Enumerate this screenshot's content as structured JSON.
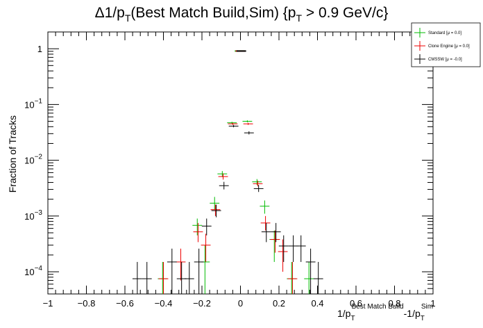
{
  "chart_data": {
    "type": "scatter",
    "y_scale": "log",
    "title": {
      "main": "Δ1/p",
      "main_sub": "T",
      "middle": "(Best Match Build,Sim) {p",
      "middle_sub": "T",
      "end": " > 0.9 GeV/c}"
    },
    "xlabel": {
      "a": "1/p",
      "a_sub": "T",
      "a_sup": "Best Match Build",
      "b": "-1/p",
      "b_sub": "T",
      "b_sup": "Sim"
    },
    "ylabel": "Fraction of Tracks",
    "xlim": [
      -1,
      1
    ],
    "ylim": [
      4e-05,
      2
    ],
    "x_ticks": [
      -1,
      -0.8,
      -0.6,
      -0.4,
      -0.2,
      0,
      0.2,
      0.4,
      0.6,
      0.8,
      1
    ],
    "x_tick_labels": [
      "−1",
      "−0.8",
      "−0.6",
      "−0.4",
      "−0.2",
      "0",
      "0.2",
      "0.4",
      "0.6",
      "0.8",
      "1"
    ],
    "y_ticks": [
      {
        "value": 0.0001,
        "base": "10",
        "exp": "−4"
      },
      {
        "value": 0.001,
        "base": "10",
        "exp": "−3"
      },
      {
        "value": 0.01,
        "base": "10",
        "exp": "−2"
      },
      {
        "value": 0.1,
        "base": "10",
        "exp": "−1"
      },
      {
        "value": 1,
        "base": "1",
        "exp": ""
      }
    ],
    "legend": [
      {
        "name": "Standard",
        "stat": "[μ = 0.0]",
        "color": "#00bb00"
      },
      {
        "name": "Clone Engine",
        "stat": "[μ = 0.0]",
        "color": "#ee0000"
      },
      {
        "name": "CMSSW",
        "stat": "[μ = -0.0]",
        "color": "#000000"
      }
    ],
    "series": [
      {
        "name": "Standard",
        "color": "#00bb00",
        "points": [
          {
            "x": -0.4,
            "y": 7.5e-05,
            "ylo": 4e-05,
            "yhi": 0.00015
          },
          {
            "x": -0.22,
            "y": 0.00068,
            "ylo": 0.00045,
            "yhi": 0.0009
          },
          {
            "x": -0.18,
            "y": 0.00015,
            "ylo": 4e-05,
            "yhi": 0.0003
          },
          {
            "x": -0.13,
            "y": 0.0017,
            "ylo": 0.0013,
            "yhi": 0.0022
          },
          {
            "x": -0.09,
            "y": 0.0057,
            "ylo": 0.005,
            "yhi": 0.0064
          },
          {
            "x": -0.04,
            "y": 0.047,
            "ylo": 0.045,
            "yhi": 0.049
          },
          {
            "x": 0,
            "y": 0.91,
            "ylo": 0.9,
            "yhi": 0.92
          },
          {
            "x": 0.04,
            "y": 0.05,
            "ylo": 0.048,
            "yhi": 0.052
          },
          {
            "x": 0.09,
            "y": 0.0041,
            "ylo": 0.0036,
            "yhi": 0.0046
          },
          {
            "x": 0.13,
            "y": 0.0015,
            "ylo": 0.0011,
            "yhi": 0.0019
          },
          {
            "x": 0.18,
            "y": 0.00038,
            "ylo": 0.00015,
            "yhi": 0.00055
          },
          {
            "x": 0.27,
            "y": 7.5e-05,
            "ylo": 4e-05,
            "yhi": 0.00015
          },
          {
            "x": 0.36,
            "y": 7.5e-05,
            "ylo": 4e-05,
            "yhi": 0.00015
          }
        ]
      },
      {
        "name": "Clone Engine",
        "color": "#ee0000",
        "points": [
          {
            "x": -0.4,
            "y": 7.5e-05,
            "ylo": 4e-05,
            "yhi": 0.00015
          },
          {
            "x": -0.31,
            "y": 0.00015,
            "ylo": 7e-05,
            "yhi": 0.00026
          },
          {
            "x": -0.22,
            "y": 0.00052,
            "ylo": 0.00034,
            "yhi": 0.00075
          },
          {
            "x": -0.18,
            "y": 0.0003,
            "ylo": 0.00015,
            "yhi": 0.00048
          },
          {
            "x": -0.13,
            "y": 0.0013,
            "ylo": 0.001,
            "yhi": 0.0016
          },
          {
            "x": -0.09,
            "y": 0.0051,
            "ylo": 0.0045,
            "yhi": 0.0058
          },
          {
            "x": -0.04,
            "y": 0.045,
            "ylo": 0.043,
            "yhi": 0.047
          },
          {
            "x": 0,
            "y": 0.91,
            "ylo": 0.9,
            "yhi": 0.92
          },
          {
            "x": 0.04,
            "y": 0.045,
            "ylo": 0.043,
            "yhi": 0.047
          },
          {
            "x": 0.09,
            "y": 0.0038,
            "ylo": 0.0034,
            "yhi": 0.0043
          },
          {
            "x": 0.13,
            "y": 0.00075,
            "ylo": 0.00055,
            "yhi": 0.001
          },
          {
            "x": 0.18,
            "y": 0.00038,
            "ylo": 0.00022,
            "yhi": 0.00055
          },
          {
            "x": 0.22,
            "y": 0.00023,
            "ylo": 0.0001,
            "yhi": 0.00038
          },
          {
            "x": 0.27,
            "y": 7.5e-05,
            "ylo": 4e-05,
            "yhi": 0.00015
          }
        ]
      },
      {
        "name": "CMSSW",
        "color": "#000000",
        "points": [
          {
            "x": -0.54,
            "y": 7.5e-05,
            "ylo": 4e-05,
            "yhi": 0.00015
          },
          {
            "x": -0.49,
            "y": 7.5e-05,
            "ylo": 4e-05,
            "yhi": 0.00015
          },
          {
            "x": -0.36,
            "y": 0.00015,
            "ylo": 4e-05,
            "yhi": 0.00026
          },
          {
            "x": -0.31,
            "y": 7.5e-05,
            "ylo": 4e-05,
            "yhi": 0.00015
          },
          {
            "x": -0.27,
            "y": 7.5e-05,
            "ylo": 4e-05,
            "yhi": 0.00015
          },
          {
            "x": -0.22,
            "y": 0.00015,
            "ylo": 4e-05,
            "yhi": 0.00026
          },
          {
            "x": -0.18,
            "y": 0.00066,
            "ylo": 0.00045,
            "yhi": 0.0009
          },
          {
            "x": -0.13,
            "y": 0.00125,
            "ylo": 0.00095,
            "yhi": 0.0016
          },
          {
            "x": -0.09,
            "y": 0.0035,
            "ylo": 0.003,
            "yhi": 0.0041
          },
          {
            "x": -0.04,
            "y": 0.041,
            "ylo": 0.039,
            "yhi": 0.043
          },
          {
            "x": 0,
            "y": 0.91,
            "ylo": 0.9,
            "yhi": 0.92
          },
          {
            "x": 0.04,
            "y": 0.031,
            "ylo": 0.029,
            "yhi": 0.033
          },
          {
            "x": 0.09,
            "y": 0.0031,
            "ylo": 0.0027,
            "yhi": 0.0036
          },
          {
            "x": 0.13,
            "y": 0.00052,
            "ylo": 0.00034,
            "yhi": 0.00075
          },
          {
            "x": 0.18,
            "y": 0.00052,
            "ylo": 0.00034,
            "yhi": 0.00075
          },
          {
            "x": 0.22,
            "y": 0.00029,
            "ylo": 0.00015,
            "yhi": 0.00045
          },
          {
            "x": 0.27,
            "y": 0.00029,
            "ylo": 0.00015,
            "yhi": 0.00045
          },
          {
            "x": 0.31,
            "y": 0.00029,
            "ylo": 0.00015,
            "yhi": 0.00045
          },
          {
            "x": 0.36,
            "y": 0.00015,
            "ylo": 4e-05,
            "yhi": 0.00026
          },
          {
            "x": 0.4,
            "y": 7.5e-05,
            "ylo": 4e-05,
            "yhi": 0.00015
          }
        ]
      }
    ]
  }
}
